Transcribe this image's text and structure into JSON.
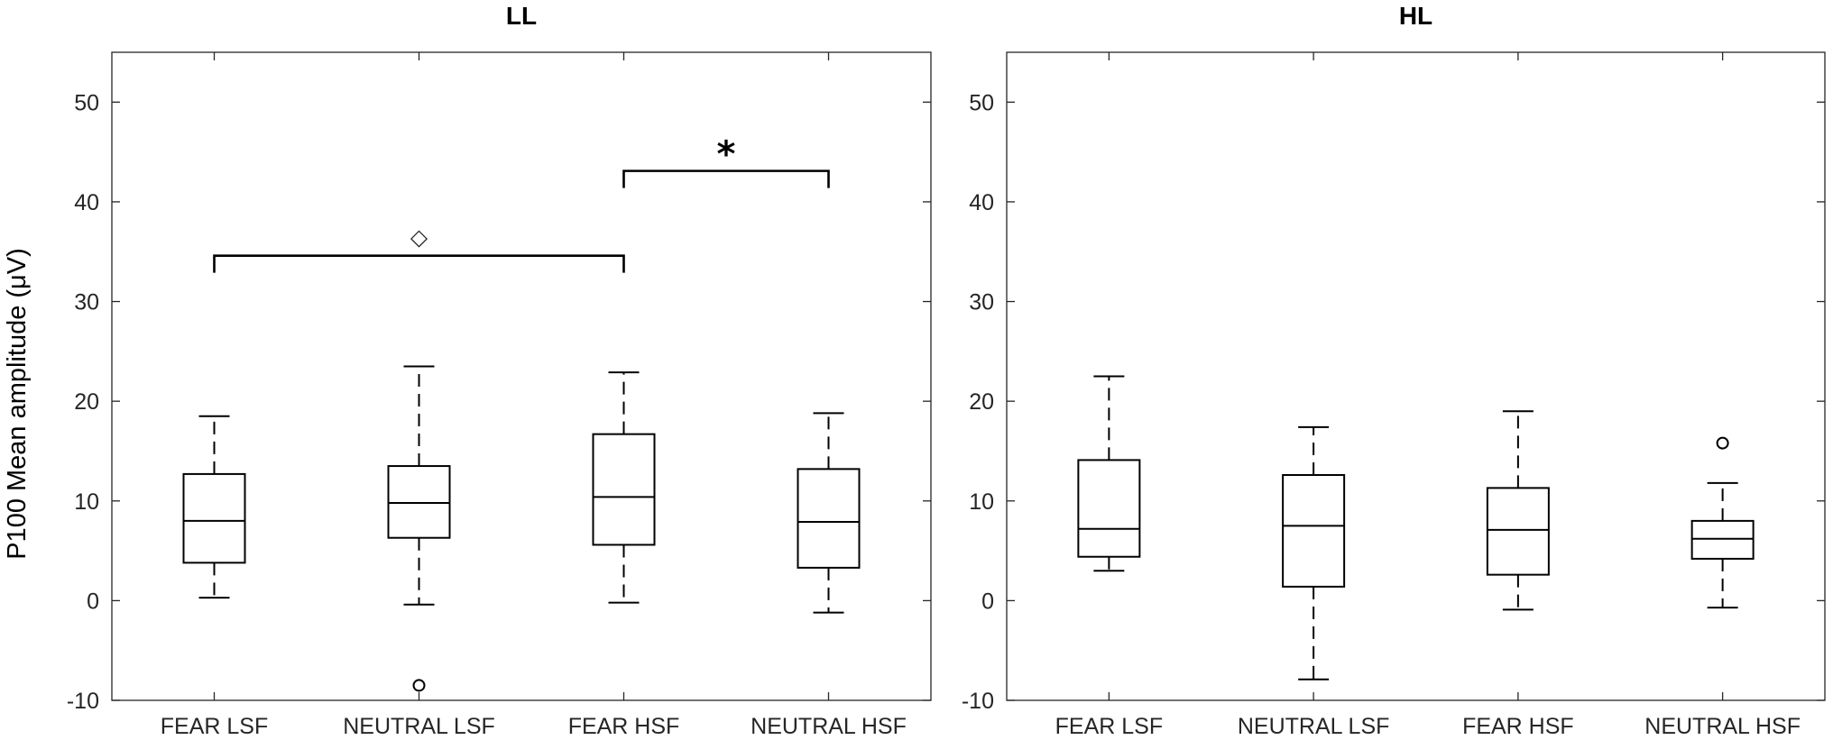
{
  "figure": {
    "ylabel": "P100 Mean amplitude (μV)"
  },
  "chart_data": [
    {
      "type": "box",
      "title": "LL",
      "categories": [
        "FEAR LSF",
        "NEUTRAL LSF",
        "FEAR HSF",
        "NEUTRAL HSF"
      ],
      "ylim": [
        -10,
        55
      ],
      "yticks": [
        "-10",
        "0",
        "10",
        "20",
        "30",
        "40",
        "50"
      ],
      "boxes": [
        {
          "whisker_low": 0.3,
          "q1": 3.8,
          "median": 8.0,
          "q3": 12.7,
          "whisker_high": 18.5,
          "outliers": []
        },
        {
          "whisker_low": -0.4,
          "q1": 6.3,
          "median": 9.8,
          "q3": 13.5,
          "whisker_high": 23.5,
          "outliers": [
            -8.5
          ]
        },
        {
          "whisker_low": -0.2,
          "q1": 5.6,
          "median": 10.4,
          "q3": 16.7,
          "whisker_high": 22.9,
          "outliers": []
        },
        {
          "whisker_low": -1.2,
          "q1": 3.3,
          "median": 7.9,
          "q3": 13.2,
          "whisker_high": 18.8,
          "outliers": []
        }
      ],
      "brackets": [
        {
          "from": 0,
          "to": 2,
          "y": 34.6,
          "label": "◇"
        },
        {
          "from": 2,
          "to": 3,
          "y": 43.1,
          "label": "*"
        }
      ]
    },
    {
      "type": "box",
      "title": "HL",
      "categories": [
        "FEAR LSF",
        "NEUTRAL LSF",
        "FEAR HSF",
        "NEUTRAL HSF"
      ],
      "ylim": [
        -10,
        55
      ],
      "yticks": [
        "-10",
        "0",
        "10",
        "20",
        "30",
        "40",
        "50"
      ],
      "boxes": [
        {
          "whisker_low": 3.0,
          "q1": 4.4,
          "median": 7.2,
          "q3": 14.1,
          "whisker_high": 22.5,
          "outliers": []
        },
        {
          "whisker_low": -7.9,
          "q1": 1.4,
          "median": 7.5,
          "q3": 12.6,
          "whisker_high": 17.4,
          "outliers": []
        },
        {
          "whisker_low": -0.9,
          "q1": 2.6,
          "median": 7.1,
          "q3": 11.3,
          "whisker_high": 19.0,
          "outliers": []
        },
        {
          "whisker_low": -0.7,
          "q1": 4.2,
          "median": 6.2,
          "q3": 8.0,
          "whisker_high": 11.8,
          "outliers": [
            15.8
          ]
        }
      ],
      "brackets": []
    }
  ]
}
